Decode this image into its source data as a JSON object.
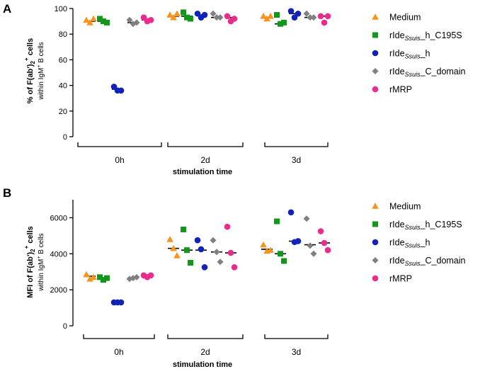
{
  "colors": {
    "Medium": "#F7941D",
    "rIde_h_C195S": "#13961B",
    "rIde_h": "#1122BB",
    "rIde_C_domain": "#808080",
    "rMRP": "#EC2C8C"
  },
  "chart_data": [
    {
      "type": "scatter",
      "panel": "A",
      "ylabel_main": "% of F(ab')",
      "ylabel_sub": "2",
      "ylabel_sup": "+",
      "ylabel_cells": " cells",
      "ylabel_line2_pre": "within IgM",
      "ylabel_line2_sup": "+",
      "ylabel_line2_post": " B cells",
      "xlabel": "stimulation time",
      "ylim": [
        0,
        100
      ],
      "yticks": [
        "0",
        "20",
        "40",
        "60",
        "80",
        "100"
      ],
      "groups": [
        "0h",
        "2d",
        "3d"
      ],
      "series": [
        {
          "name": "Medium",
          "marker": "triangle",
          "color": "#F7941D",
          "median": [
            90,
            94,
            93
          ],
          "points": [
            [
              91,
              89,
              92
            ],
            [
              95,
              93,
              96
            ],
            [
              94,
              92,
              94
            ]
          ]
        },
        {
          "name": "rIde_h_C195S",
          "marker": "square",
          "color": "#13961B",
          "median": [
            90,
            94,
            88
          ],
          "points": [
            [
              92,
              90,
              89
            ],
            [
              97,
              93,
              92
            ],
            [
              95,
              88,
              89
            ]
          ]
        },
        {
          "name": "rIde_h",
          "marker": "circle",
          "color": "#1122BB",
          "median": [
            37,
            95,
            96
          ],
          "points": [
            [
              39,
              36,
              36
            ],
            [
              96,
              93,
              95
            ],
            [
              98,
              93,
              96
            ]
          ]
        },
        {
          "name": "rIde_C_domain",
          "marker": "diamond",
          "color": "#808080",
          "median": [
            89,
            93,
            93
          ],
          "points": [
            [
              91,
              88,
              89
            ],
            [
              96,
              93,
              93
            ],
            [
              96,
              93,
              93
            ]
          ]
        },
        {
          "name": "rMRP",
          "marker": "circle",
          "color": "#EC2C8C",
          "median": [
            91,
            93,
            94
          ],
          "points": [
            [
              93,
              90,
              91
            ],
            [
              94,
              90,
              92
            ],
            [
              94,
              89,
              94
            ]
          ]
        }
      ]
    },
    {
      "type": "scatter",
      "panel": "B",
      "ylabel_main": "MFI of F(ab')",
      "ylabel_sub": "2",
      "ylabel_sup": "+",
      "ylabel_cells": " cells",
      "ylabel_line2_pre": "within IgM",
      "ylabel_line2_sup": "+",
      "ylabel_line2_post": " B cells",
      "xlabel": "stimulation time",
      "ylim": [
        0,
        7000
      ],
      "yticks": [
        "0",
        "2000",
        "4000",
        "6000"
      ],
      "groups": [
        "0h",
        "2d",
        "3d"
      ],
      "series": [
        {
          "name": "Medium",
          "marker": "triangle",
          "color": "#F7941D",
          "median": [
            2750,
            4300,
            4250
          ],
          "points": [
            [
              2850,
              2600,
              2700
            ],
            [
              4800,
              4300,
              3900
            ],
            [
              4500,
              4150,
              4200
            ]
          ]
        },
        {
          "name": "rIde_h_C195S",
          "marker": "square",
          "color": "#13961B",
          "median": [
            2650,
            4200,
            4000
          ],
          "points": [
            [
              2700,
              2550,
              2650
            ],
            [
              5350,
              4200,
              3500
            ],
            [
              5800,
              4000,
              3600
            ]
          ]
        },
        {
          "name": "rIde_h",
          "marker": "circle",
          "color": "#1122BB",
          "median": [
            1300,
            4200,
            4700
          ],
          "points": [
            [
              1300,
              1300,
              1300
            ],
            [
              4750,
              4250,
              3250
            ],
            [
              6300,
              4650,
              4700
            ]
          ]
        },
        {
          "name": "rIde_C_domain",
          "marker": "diamond",
          "color": "#808080",
          "median": [
            2650,
            4100,
            4500
          ],
          "points": [
            [
              2600,
              2650,
              2700
            ],
            [
              4750,
              4100,
              3550
            ],
            [
              5950,
              4450,
              4000
            ]
          ]
        },
        {
          "name": "rMRP",
          "marker": "circle",
          "color": "#EC2C8C",
          "median": [
            2750,
            4050,
            4600
          ],
          "points": [
            [
              2800,
              2700,
              2800
            ],
            [
              5500,
              4050,
              3250
            ],
            [
              5250,
              4600,
              4200
            ]
          ]
        }
      ]
    }
  ],
  "legend": [
    {
      "key": "Medium",
      "marker": "triangle",
      "pre": "Medium",
      "sub": "",
      "post": ""
    },
    {
      "key": "rIde_h_C195S",
      "marker": "square",
      "pre": "rIde",
      "sub": "Ssuis",
      "post": "_h_C195S"
    },
    {
      "key": "rIde_h",
      "marker": "circle",
      "pre": "rIde",
      "sub": "Ssuis",
      "post": "_h"
    },
    {
      "key": "rIde_C_domain",
      "marker": "diamond",
      "pre": "rIde",
      "sub": "Ssuis",
      "post": "_C_domain"
    },
    {
      "key": "rMRP",
      "marker": "circle",
      "pre": "rMRP",
      "sub": "",
      "post": ""
    }
  ]
}
